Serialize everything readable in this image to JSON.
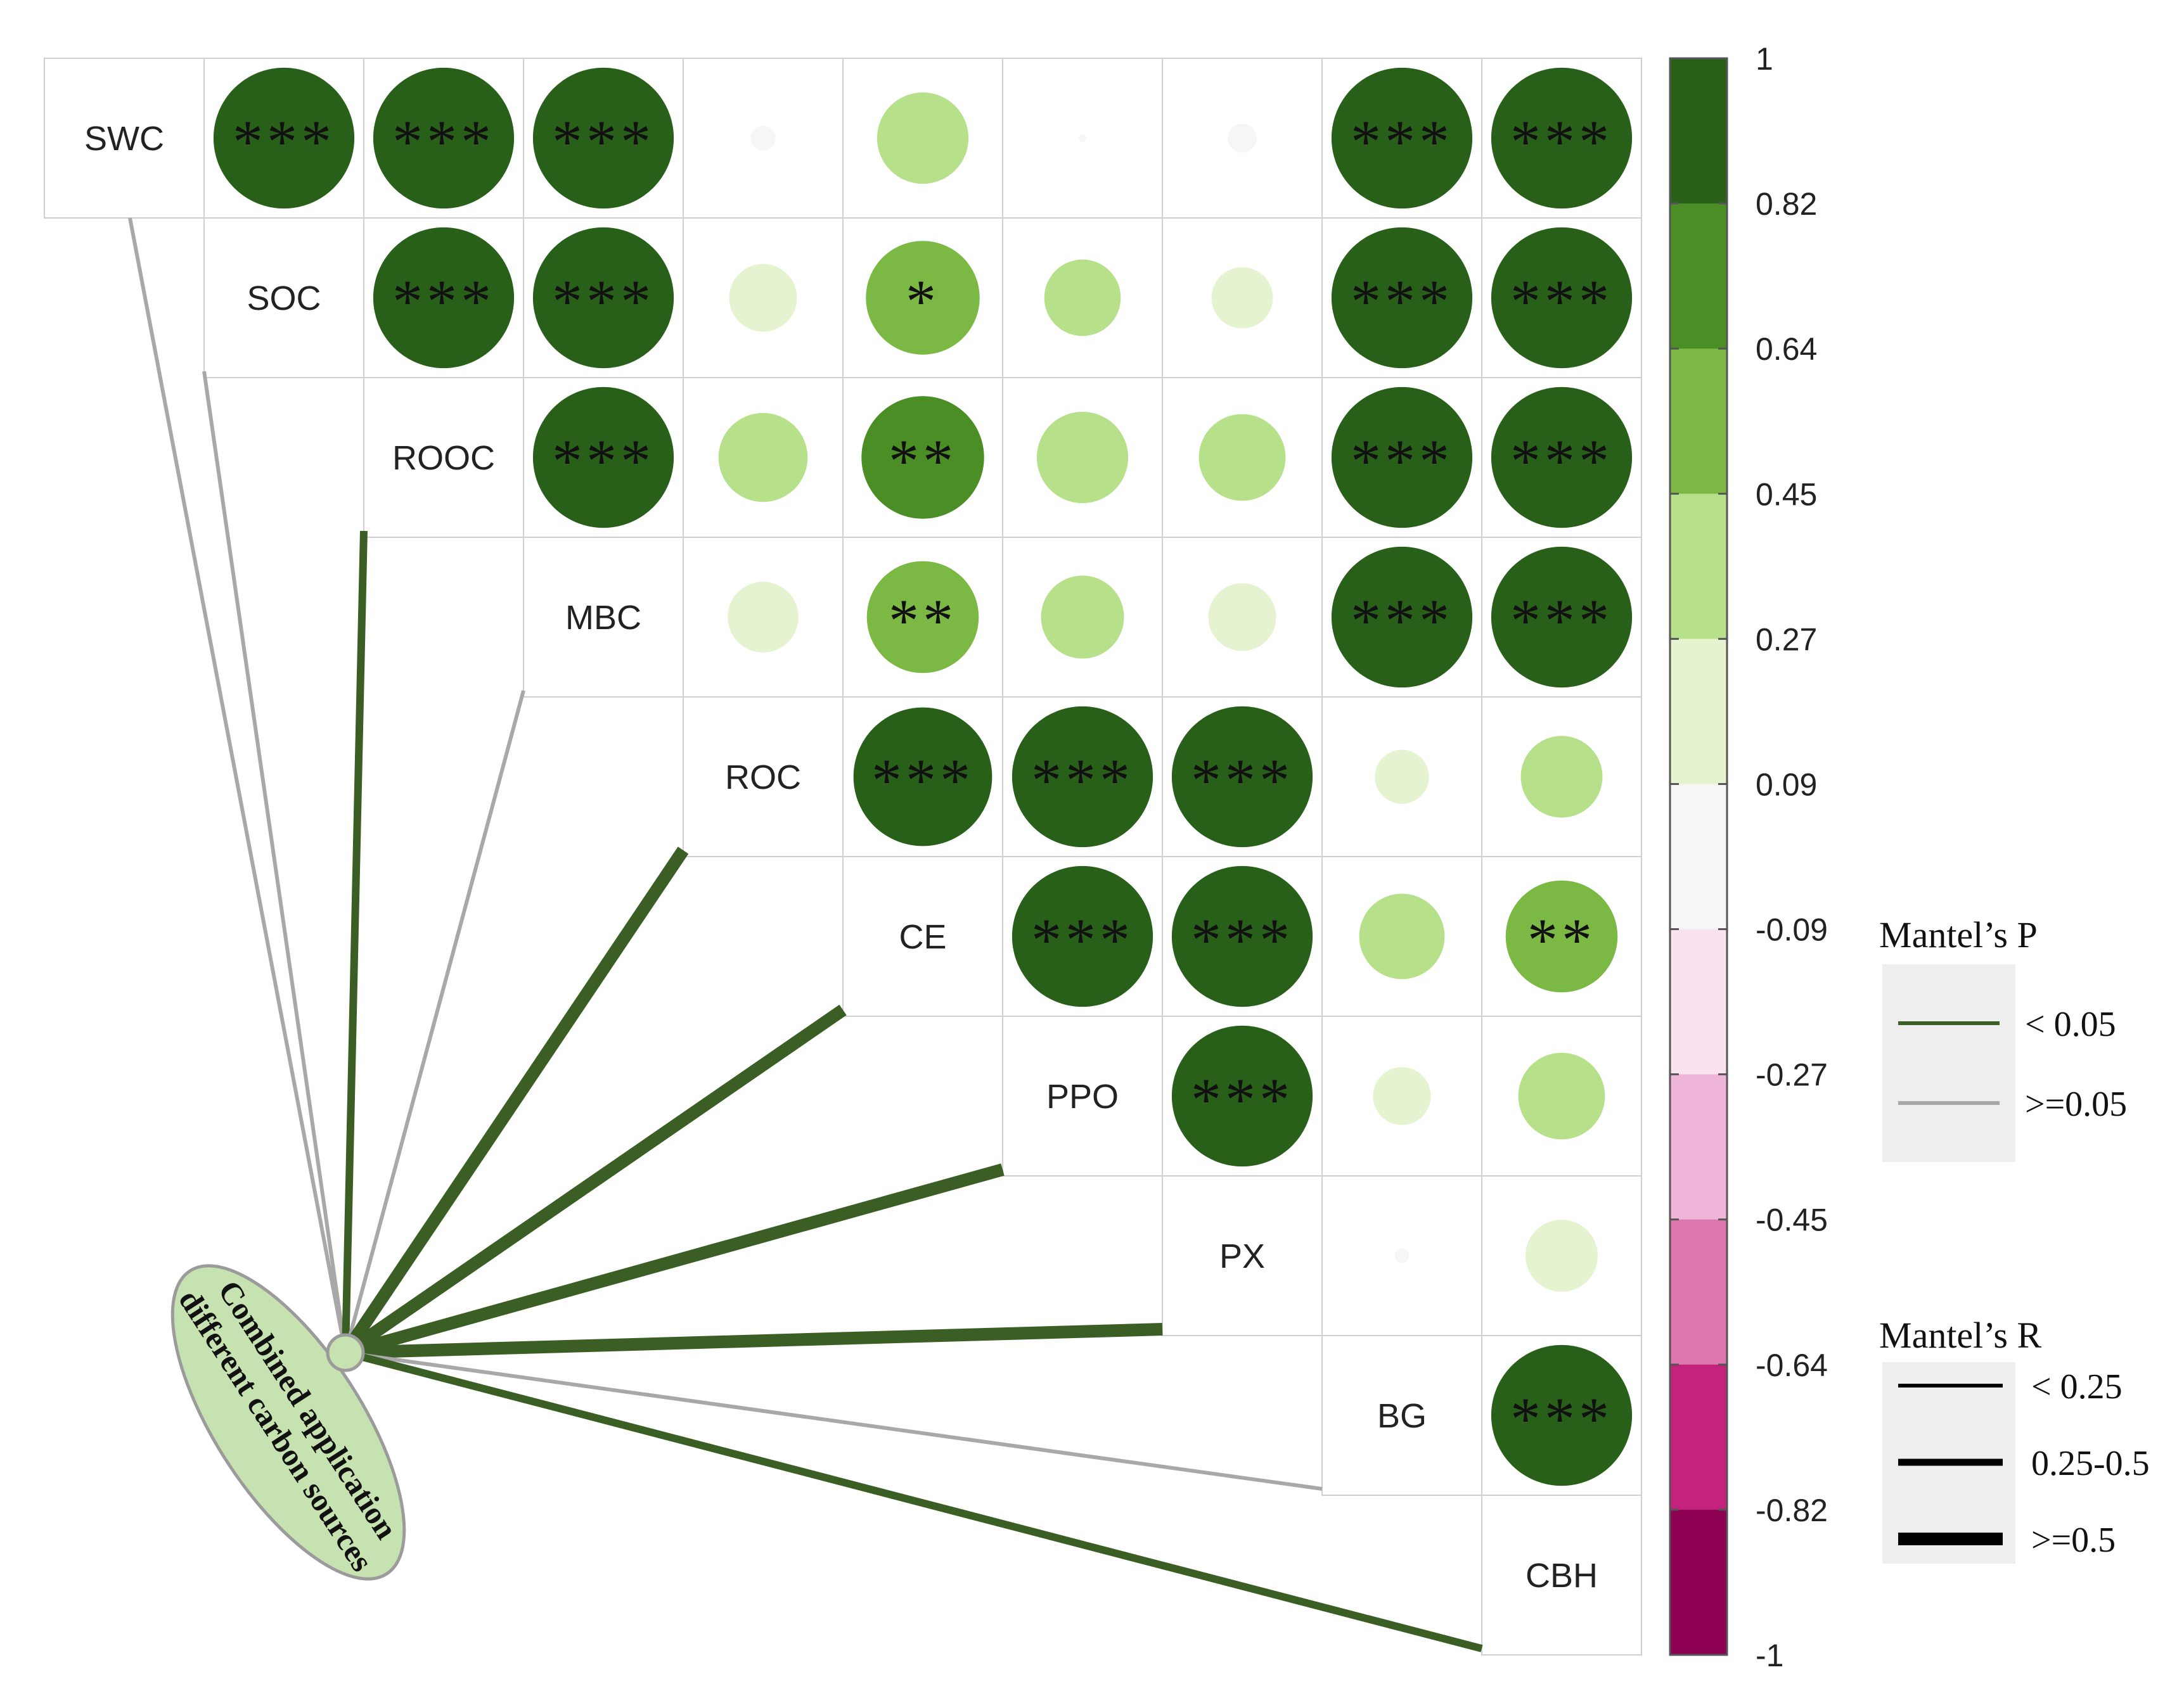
{
  "chart_data": {
    "type": "heatmap",
    "subtype": "mantel-test-correlation-heatmap",
    "variables": [
      "SWC",
      "SOC",
      "ROOC",
      "MBC",
      "ROC",
      "CE",
      "PPO",
      "PX",
      "BG",
      "CBH"
    ],
    "correlations": [
      {
        "row": "SWC",
        "col": "SOC",
        "r": 0.95,
        "sig": "***"
      },
      {
        "row": "SWC",
        "col": "ROOC",
        "r": 0.95,
        "sig": "***"
      },
      {
        "row": "SWC",
        "col": "MBC",
        "r": 0.95,
        "sig": "***"
      },
      {
        "row": "SWC",
        "col": "ROC",
        "r": 0.03,
        "sig": ""
      },
      {
        "row": "SWC",
        "col": "CE",
        "r": 0.4,
        "sig": ""
      },
      {
        "row": "SWC",
        "col": "PPO",
        "r": 0.0,
        "sig": ""
      },
      {
        "row": "SWC",
        "col": "PX",
        "r": 0.04,
        "sig": ""
      },
      {
        "row": "SWC",
        "col": "BG",
        "r": 0.95,
        "sig": "***"
      },
      {
        "row": "SWC",
        "col": "CBH",
        "r": 0.95,
        "sig": "***"
      },
      {
        "row": "SOC",
        "col": "ROOC",
        "r": 0.95,
        "sig": "***"
      },
      {
        "row": "SOC",
        "col": "MBC",
        "r": 0.95,
        "sig": "***"
      },
      {
        "row": "SOC",
        "col": "ROC",
        "r": 0.22,
        "sig": ""
      },
      {
        "row": "SOC",
        "col": "CE",
        "r": 0.62,
        "sig": "*"
      },
      {
        "row": "SOC",
        "col": "PPO",
        "r": 0.28,
        "sig": ""
      },
      {
        "row": "SOC",
        "col": "PX",
        "r": 0.18,
        "sig": ""
      },
      {
        "row": "SOC",
        "col": "BG",
        "r": 0.95,
        "sig": "***"
      },
      {
        "row": "SOC",
        "col": "CBH",
        "r": 0.95,
        "sig": "***"
      },
      {
        "row": "ROOC",
        "col": "MBC",
        "r": 0.95,
        "sig": "***"
      },
      {
        "row": "ROOC",
        "col": "ROC",
        "r": 0.38,
        "sig": ""
      },
      {
        "row": "ROOC",
        "col": "CE",
        "r": 0.72,
        "sig": "**"
      },
      {
        "row": "ROOC",
        "col": "PPO",
        "r": 0.4,
        "sig": ""
      },
      {
        "row": "ROOC",
        "col": "PX",
        "r": 0.36,
        "sig": ""
      },
      {
        "row": "ROOC",
        "col": "BG",
        "r": 0.95,
        "sig": "***"
      },
      {
        "row": "ROOC",
        "col": "CBH",
        "r": 0.95,
        "sig": "***"
      },
      {
        "row": "MBC",
        "col": "ROC",
        "r": 0.24,
        "sig": ""
      },
      {
        "row": "MBC",
        "col": "CE",
        "r": 0.6,
        "sig": "**"
      },
      {
        "row": "MBC",
        "col": "PPO",
        "r": 0.33,
        "sig": ""
      },
      {
        "row": "MBC",
        "col": "PX",
        "r": 0.22,
        "sig": ""
      },
      {
        "row": "MBC",
        "col": "BG",
        "r": 0.95,
        "sig": "***"
      },
      {
        "row": "MBC",
        "col": "CBH",
        "r": 0.95,
        "sig": "***"
      },
      {
        "row": "ROC",
        "col": "CE",
        "r": 0.92,
        "sig": "***"
      },
      {
        "row": "ROC",
        "col": "PPO",
        "r": 0.95,
        "sig": "***"
      },
      {
        "row": "ROC",
        "col": "PX",
        "r": 0.95,
        "sig": "***"
      },
      {
        "row": "ROC",
        "col": "BG",
        "r": 0.14,
        "sig": ""
      },
      {
        "row": "ROC",
        "col": "CBH",
        "r": 0.32,
        "sig": ""
      },
      {
        "row": "CE",
        "col": "PPO",
        "r": 0.95,
        "sig": "***"
      },
      {
        "row": "CE",
        "col": "PX",
        "r": 0.95,
        "sig": "***"
      },
      {
        "row": "CE",
        "col": "BG",
        "r": 0.35,
        "sig": ""
      },
      {
        "row": "CE",
        "col": "CBH",
        "r": 0.6,
        "sig": "**"
      },
      {
        "row": "PPO",
        "col": "PX",
        "r": 0.95,
        "sig": "***"
      },
      {
        "row": "PPO",
        "col": "BG",
        "r": 0.16,
        "sig": ""
      },
      {
        "row": "PPO",
        "col": "CBH",
        "r": 0.36,
        "sig": ""
      },
      {
        "row": "PX",
        "col": "BG",
        "r": 0.01,
        "sig": ""
      },
      {
        "row": "PX",
        "col": "CBH",
        "r": 0.25,
        "sig": ""
      },
      {
        "row": "BG",
        "col": "CBH",
        "r": 0.95,
        "sig": "***"
      }
    ],
    "colorbar": {
      "ticks": [
        "1",
        "0.82",
        "0.64",
        "0.45",
        "0.27",
        "0.09",
        "-0.09",
        "-0.27",
        "-0.45",
        "-0.64",
        "-0.82",
        "-1"
      ],
      "segment_colors": [
        "#28601a",
        "#4c8e26",
        "#7cb944",
        "#b7e08a",
        "#e5f3d1",
        "#f6f6f6",
        "#fbe2ef",
        "#f0b6d9",
        "#de77b0",
        "#c4237d",
        "#8e0152"
      ]
    },
    "mantel_source": {
      "label_line1": "Combined application",
      "label_line2": "different carbon sources"
    },
    "mantel_links": [
      {
        "target": "SWC",
        "p_class": ">=0.05",
        "r_class": "< 0.25"
      },
      {
        "target": "SOC",
        "p_class": ">=0.05",
        "r_class": "< 0.25"
      },
      {
        "target": "ROOC",
        "p_class": "< 0.05",
        "r_class": "0.25-0.5"
      },
      {
        "target": "MBC",
        "p_class": ">=0.05",
        "r_class": "< 0.25"
      },
      {
        "target": "ROC",
        "p_class": "< 0.05",
        "r_class": ">=0.5"
      },
      {
        "target": "CE",
        "p_class": "< 0.05",
        "r_class": ">=0.5"
      },
      {
        "target": "PPO",
        "p_class": "< 0.05",
        "r_class": ">=0.5"
      },
      {
        "target": "PX",
        "p_class": "< 0.05",
        "r_class": ">=0.5"
      },
      {
        "target": "BG",
        "p_class": ">=0.05",
        "r_class": "< 0.25"
      },
      {
        "target": "CBH",
        "p_class": "< 0.05",
        "r_class": "0.25-0.5"
      }
    ],
    "legend_p": {
      "title": "Mantel’s P",
      "items": [
        {
          "label": "<  0.05",
          "color": "#3b5e24"
        },
        {
          "label": ">=0.05",
          "color": "#a8a8a8"
        }
      ]
    },
    "legend_r": {
      "title": "Mantel’s R",
      "items": [
        {
          "label": "<  0.25"
        },
        {
          "label": "0.25-0.5"
        },
        {
          "label": ">=0.5"
        }
      ]
    }
  }
}
